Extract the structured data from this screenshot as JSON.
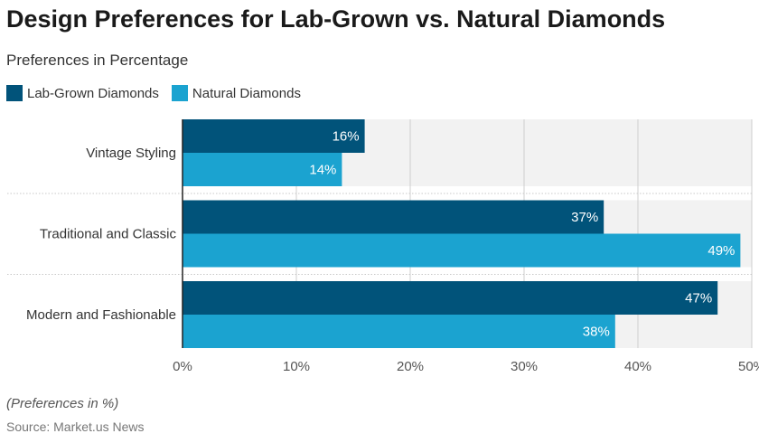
{
  "chart_data": {
    "type": "bar",
    "orientation": "horizontal",
    "title": "Design Preferences for Lab-Grown vs. Natural Diamonds",
    "subtitle": "Preferences in Percentage",
    "categories": [
      "Vintage Styling",
      "Traditional and Classic",
      "Modern and Fashionable"
    ],
    "series": [
      {
        "name": "Lab-Grown Diamonds",
        "color": "#01537a",
        "values": [
          16,
          37,
          47
        ]
      },
      {
        "name": "Natural Diamonds",
        "color": "#1ba3d0",
        "values": [
          14,
          49,
          38
        ]
      }
    ],
    "xlim": [
      0,
      50
    ],
    "xticks": [
      "0%",
      "10%",
      "20%",
      "30%",
      "40%",
      "50%"
    ],
    "grid": true,
    "legend": "top-left",
    "note": "(Preferences in %)",
    "source": "Source: Market.us News"
  }
}
